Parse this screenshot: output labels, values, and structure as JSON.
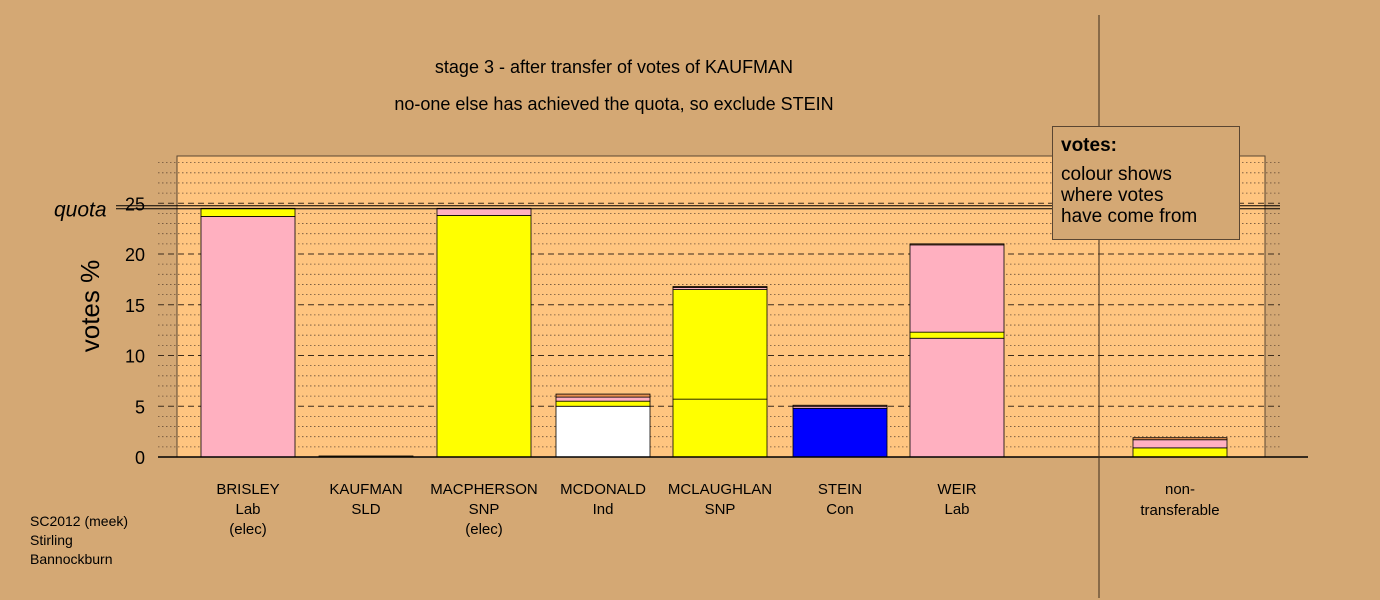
{
  "chart_data": {
    "type": "bar",
    "stacked": true,
    "title": "stage 3 - after transfer of votes of KAUFMAN",
    "subtitle": "no-one else has achieved the quota, so exclude STEIN",
    "ylabel": "votes %",
    "xlabel": "",
    "ylim": [
      0,
      29
    ],
    "yticks": [
      0,
      5,
      10,
      15,
      20,
      25
    ],
    "quota": 24.6,
    "quota_label": "quota",
    "grid": true,
    "colors": {
      "lab": "#ffb0c0",
      "snp": "#ffff00",
      "ind": "#ffffff",
      "con": "#0000ff",
      "sld": "#ffa500",
      "orange": "#e89050",
      "dark": "#5a3010",
      "plot_bg": "#ffc580",
      "page_bg": "#d4a874"
    },
    "categories": [
      {
        "name": "BRISLEY",
        "party": "Lab",
        "status": "(elec)",
        "segments": [
          {
            "value": 23.7,
            "color": "#ffb0c0"
          },
          {
            "value": 0.8,
            "color": "#ffff00"
          }
        ]
      },
      {
        "name": "KAUFMAN",
        "party": "SLD",
        "status": "",
        "segments": [
          {
            "value": 0.1,
            "color": "#ffa500"
          }
        ]
      },
      {
        "name": "MACPHERSON",
        "party": "SNP",
        "status": "(elec)",
        "segments": [
          {
            "value": 23.8,
            "color": "#ffff00"
          },
          {
            "value": 0.7,
            "color": "#ffb0c0"
          }
        ]
      },
      {
        "name": "MCDONALD",
        "party": "Ind",
        "status": "",
        "segments": [
          {
            "value": 5.0,
            "color": "#ffffff"
          },
          {
            "value": 0.5,
            "color": "#ffff00"
          },
          {
            "value": 0.4,
            "color": "#ffb0c0"
          },
          {
            "value": 0.3,
            "color": "#e89050"
          }
        ]
      },
      {
        "name": "MCLAUGHLAN",
        "party": "SNP",
        "status": "",
        "segments": [
          {
            "value": 5.7,
            "color": "#ffff00"
          },
          {
            "value": 10.8,
            "color": "#ffff00"
          },
          {
            "value": 0.2,
            "color": "#ffb0c0"
          },
          {
            "value": 0.1,
            "color": "#e89050"
          }
        ]
      },
      {
        "name": "STEIN",
        "party": "Con",
        "status": "",
        "segments": [
          {
            "value": 4.8,
            "color": "#0000ff"
          },
          {
            "value": 0.2,
            "color": "#ffb0c0"
          },
          {
            "value": 0.1,
            "color": "#e89050"
          }
        ]
      },
      {
        "name": "WEIR",
        "party": "Lab",
        "status": "",
        "segments": [
          {
            "value": 11.7,
            "color": "#ffb0c0"
          },
          {
            "value": 0.6,
            "color": "#ffff00"
          },
          {
            "value": 8.6,
            "color": "#ffb0c0"
          },
          {
            "value": 0.1,
            "color": "#e89050"
          }
        ]
      }
    ],
    "nontransferable": {
      "label_line1": "non-",
      "label_line2": "transferable",
      "segments": [
        {
          "value": 0.9,
          "color": "#ffff00"
        },
        {
          "value": 0.8,
          "color": "#ffb0c0"
        },
        {
          "value": 0.2,
          "color": "#e89050"
        }
      ]
    }
  },
  "legend": {
    "heading": "votes:",
    "lines": [
      "colour shows",
      "where votes",
      "have come from"
    ]
  },
  "footer": {
    "line1": "SC2012 (meek)",
    "line2": "Stirling",
    "line3": "Bannockburn"
  }
}
